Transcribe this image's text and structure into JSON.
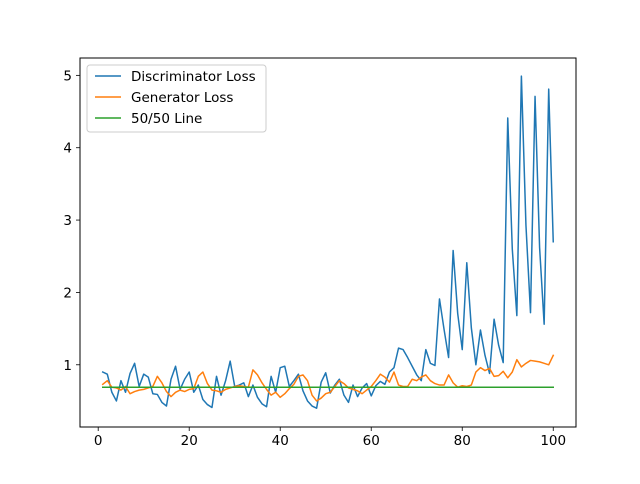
{
  "chart_data": {
    "type": "line",
    "title": "",
    "xlabel": "",
    "ylabel": "",
    "xlim": [
      -4,
      105
    ],
    "ylim": [
      0.14,
      5.24
    ],
    "xticks": [
      0,
      20,
      40,
      60,
      80,
      100
    ],
    "yticks": [
      1,
      2,
      3,
      4,
      5
    ],
    "legend_placement": "upper-left",
    "grid": false,
    "x": [
      1,
      2,
      3,
      4,
      5,
      6,
      7,
      8,
      9,
      10,
      11,
      12,
      13,
      14,
      15,
      16,
      17,
      18,
      19,
      20,
      21,
      22,
      23,
      24,
      25,
      26,
      27,
      28,
      29,
      30,
      31,
      32,
      33,
      34,
      35,
      36,
      37,
      38,
      39,
      40,
      41,
      42,
      43,
      44,
      45,
      46,
      47,
      48,
      49,
      50,
      51,
      52,
      53,
      54,
      55,
      56,
      57,
      58,
      59,
      60,
      61,
      62,
      63,
      64,
      65,
      66,
      67,
      68,
      69,
      70,
      71,
      72,
      73,
      74,
      75,
      76,
      77,
      78,
      79,
      80,
      81,
      82,
      83,
      84,
      85,
      86,
      87,
      88,
      89,
      90,
      91,
      92,
      93,
      94,
      95,
      96,
      97,
      98,
      99,
      100
    ],
    "series": [
      {
        "name": "Discriminator Loss",
        "color": "#1f77b4",
        "values": [
          0.9,
          0.87,
          0.62,
          0.5,
          0.78,
          0.62,
          0.88,
          1.02,
          0.7,
          0.87,
          0.83,
          0.6,
          0.59,
          0.48,
          0.43,
          0.8,
          0.98,
          0.66,
          0.8,
          0.9,
          0.62,
          0.72,
          0.52,
          0.45,
          0.41,
          0.84,
          0.58,
          0.78,
          1.05,
          0.7,
          0.72,
          0.75,
          0.56,
          0.72,
          0.55,
          0.46,
          0.42,
          0.84,
          0.62,
          0.96,
          0.98,
          0.7,
          0.78,
          0.87,
          0.64,
          0.5,
          0.43,
          0.4,
          0.76,
          0.89,
          0.61,
          0.72,
          0.8,
          0.58,
          0.48,
          0.72,
          0.56,
          0.68,
          0.74,
          0.57,
          0.71,
          0.77,
          0.73,
          0.9,
          0.96,
          1.23,
          1.21,
          1.1,
          0.98,
          0.86,
          0.78,
          1.21,
          1.02,
          0.99,
          1.91,
          1.49,
          1.1,
          2.58,
          1.71,
          1.21,
          2.41,
          1.51,
          1.0,
          1.48,
          1.13,
          0.88,
          1.63,
          1.27,
          1.03,
          4.41,
          2.6,
          1.68,
          4.99,
          2.93,
          1.72,
          4.71,
          2.62,
          1.56,
          4.81,
          2.7
        ]
      },
      {
        "name": "Generator Loss",
        "color": "#ff7f0e",
        "values": [
          0.73,
          0.78,
          0.69,
          0.68,
          0.65,
          0.7,
          0.6,
          0.63,
          0.65,
          0.66,
          0.68,
          0.7,
          0.84,
          0.75,
          0.63,
          0.56,
          0.62,
          0.65,
          0.63,
          0.66,
          0.67,
          0.84,
          0.9,
          0.74,
          0.65,
          0.64,
          0.62,
          0.66,
          0.68,
          0.7,
          0.71,
          0.7,
          0.69,
          0.93,
          0.86,
          0.75,
          0.66,
          0.58,
          0.62,
          0.55,
          0.6,
          0.67,
          0.73,
          0.84,
          0.86,
          0.78,
          0.58,
          0.5,
          0.54,
          0.6,
          0.62,
          0.7,
          0.78,
          0.74,
          0.68,
          0.66,
          0.64,
          0.6,
          0.65,
          0.7,
          0.78,
          0.87,
          0.83,
          0.76,
          0.9,
          0.72,
          0.7,
          0.7,
          0.8,
          0.78,
          0.83,
          0.86,
          0.78,
          0.74,
          0.72,
          0.72,
          0.86,
          0.75,
          0.69,
          0.71,
          0.7,
          0.72,
          0.9,
          0.96,
          0.92,
          0.95,
          0.84,
          0.85,
          0.91,
          0.82,
          0.9,
          1.07,
          0.97,
          1.02,
          1.06,
          1.05,
          1.04,
          1.02,
          1.0,
          1.13
        ]
      },
      {
        "name": "50/50 Line",
        "color": "#2ca02c",
        "values": [
          0.69,
          0.69,
          0.69,
          0.69,
          0.69,
          0.69,
          0.69,
          0.69,
          0.69,
          0.69,
          0.69,
          0.69,
          0.69,
          0.69,
          0.69,
          0.69,
          0.69,
          0.69,
          0.69,
          0.69,
          0.69,
          0.69,
          0.69,
          0.69,
          0.69,
          0.69,
          0.69,
          0.69,
          0.69,
          0.69,
          0.69,
          0.69,
          0.69,
          0.69,
          0.69,
          0.69,
          0.69,
          0.69,
          0.69,
          0.69,
          0.69,
          0.69,
          0.69,
          0.69,
          0.69,
          0.69,
          0.69,
          0.69,
          0.69,
          0.69,
          0.69,
          0.69,
          0.69,
          0.69,
          0.69,
          0.69,
          0.69,
          0.69,
          0.69,
          0.69,
          0.69,
          0.69,
          0.69,
          0.69,
          0.69,
          0.69,
          0.69,
          0.69,
          0.69,
          0.69,
          0.69,
          0.69,
          0.69,
          0.69,
          0.69,
          0.69,
          0.69,
          0.69,
          0.69,
          0.69,
          0.69,
          0.69,
          0.69,
          0.69,
          0.69,
          0.69,
          0.69,
          0.69,
          0.69,
          0.69,
          0.69,
          0.69,
          0.69,
          0.69,
          0.69,
          0.69,
          0.69,
          0.69,
          0.69,
          0.69
        ]
      }
    ]
  }
}
